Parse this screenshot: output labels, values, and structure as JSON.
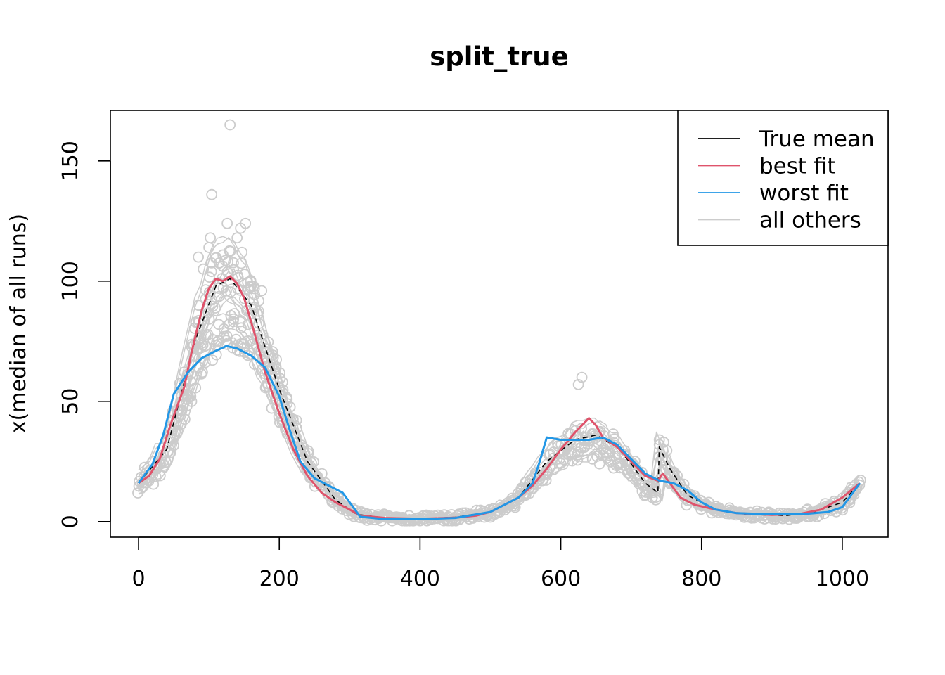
{
  "chart_data": {
    "type": "line",
    "title": "split_true",
    "xlabel": "",
    "ylabel": "x(median of all runs)",
    "xlim": [
      -40,
      1065
    ],
    "ylim": [
      -6.5,
      171
    ],
    "x_ticks": [
      0,
      200,
      400,
      600,
      800,
      1000
    ],
    "y_ticks": [
      0,
      50,
      100,
      150
    ],
    "grid": false,
    "legend_position": "top-right",
    "legend": [
      {
        "label": "True mean",
        "color": "#000000"
      },
      {
        "label": "best fit",
        "color": "#df536b"
      },
      {
        "label": "worst fit",
        "color": "#2297e6"
      },
      {
        "label": "all others",
        "color": "#cccccc"
      }
    ],
    "series": [
      {
        "name": "True mean",
        "color": "#000000",
        "style": "dashed",
        "points": [
          [
            0,
            16
          ],
          [
            40,
            30
          ],
          [
            80,
            75
          ],
          [
            110,
            98
          ],
          [
            130,
            101
          ],
          [
            160,
            90
          ],
          [
            200,
            55
          ],
          [
            240,
            25
          ],
          [
            280,
            9
          ],
          [
            310,
            3
          ],
          [
            350,
            1.5
          ],
          [
            400,
            1.2
          ],
          [
            450,
            1.8
          ],
          [
            500,
            4
          ],
          [
            540,
            10
          ],
          [
            580,
            25
          ],
          [
            620,
            34
          ],
          [
            650,
            36
          ],
          [
            680,
            31
          ],
          [
            700,
            24
          ],
          [
            720,
            16
          ],
          [
            738,
            12
          ],
          [
            740,
            31
          ],
          [
            755,
            22
          ],
          [
            780,
            11
          ],
          [
            820,
            5
          ],
          [
            860,
            3
          ],
          [
            920,
            2.5
          ],
          [
            960,
            4
          ],
          [
            1000,
            8
          ],
          [
            1025,
            16
          ]
        ]
      },
      {
        "name": "best fit",
        "color": "#df536b",
        "style": "solid",
        "points": [
          [
            0,
            16
          ],
          [
            15,
            19
          ],
          [
            30,
            26
          ],
          [
            45,
            40
          ],
          [
            55,
            48
          ],
          [
            65,
            56
          ],
          [
            75,
            70
          ],
          [
            90,
            88
          ],
          [
            100,
            97
          ],
          [
            110,
            101
          ],
          [
            120,
            100
          ],
          [
            130,
            102
          ],
          [
            140,
            99
          ],
          [
            150,
            93
          ],
          [
            165,
            78
          ],
          [
            180,
            62
          ],
          [
            200,
            45
          ],
          [
            220,
            30
          ],
          [
            240,
            19
          ],
          [
            260,
            12
          ],
          [
            280,
            8
          ],
          [
            300,
            5
          ],
          [
            315,
            2.5
          ],
          [
            350,
            1.5
          ],
          [
            400,
            1.2
          ],
          [
            450,
            1.6
          ],
          [
            480,
            2.5
          ],
          [
            500,
            4
          ],
          [
            520,
            7
          ],
          [
            540,
            10
          ],
          [
            560,
            15
          ],
          [
            580,
            22
          ],
          [
            600,
            30
          ],
          [
            620,
            37
          ],
          [
            640,
            43
          ],
          [
            650,
            40
          ],
          [
            660,
            35
          ],
          [
            680,
            31
          ],
          [
            700,
            25
          ],
          [
            720,
            19
          ],
          [
            738,
            17
          ],
          [
            745,
            20
          ],
          [
            755,
            16
          ],
          [
            770,
            10
          ],
          [
            790,
            7
          ],
          [
            820,
            5
          ],
          [
            850,
            3.5
          ],
          [
            900,
            2.8
          ],
          [
            940,
            3.2
          ],
          [
            970,
            5
          ],
          [
            1000,
            10
          ],
          [
            1025,
            16
          ]
        ]
      },
      {
        "name": "worst fit",
        "color": "#2297e6",
        "style": "solid",
        "points": [
          [
            0,
            16
          ],
          [
            20,
            24
          ],
          [
            35,
            36
          ],
          [
            50,
            53
          ],
          [
            70,
            62
          ],
          [
            90,
            68
          ],
          [
            110,
            71
          ],
          [
            125,
            73
          ],
          [
            140,
            72
          ],
          [
            160,
            69
          ],
          [
            180,
            64
          ],
          [
            200,
            52
          ],
          [
            215,
            38
          ],
          [
            230,
            25
          ],
          [
            250,
            18
          ],
          [
            270,
            15
          ],
          [
            290,
            12
          ],
          [
            305,
            6
          ],
          [
            315,
            2
          ],
          [
            350,
            1
          ],
          [
            400,
            1
          ],
          [
            450,
            1.5
          ],
          [
            500,
            4
          ],
          [
            540,
            10
          ],
          [
            560,
            16
          ],
          [
            570,
            25
          ],
          [
            580,
            35
          ],
          [
            600,
            34
          ],
          [
            620,
            34
          ],
          [
            640,
            34
          ],
          [
            660,
            35
          ],
          [
            680,
            32
          ],
          [
            700,
            26
          ],
          [
            720,
            20
          ],
          [
            740,
            17
          ],
          [
            760,
            16
          ],
          [
            780,
            13
          ],
          [
            800,
            8
          ],
          [
            820,
            5
          ],
          [
            850,
            3.5
          ],
          [
            900,
            3
          ],
          [
            940,
            3
          ],
          [
            980,
            4
          ],
          [
            1000,
            6
          ],
          [
            1025,
            16
          ]
        ]
      }
    ],
    "scatter_others": {
      "name": "all others",
      "color": "#cccccc",
      "outliers": [
        [
          130,
          165
        ],
        [
          104,
          136
        ],
        [
          126,
          124
        ],
        [
          145,
          122
        ],
        [
          152,
          124
        ],
        [
          140,
          118
        ],
        [
          102,
          118
        ],
        [
          100,
          114
        ],
        [
          147,
          112
        ],
        [
          85,
          110
        ],
        [
          127,
          108
        ],
        [
          92,
          105
        ],
        [
          160,
          98
        ],
        [
          175,
          96
        ],
        [
          630,
          60
        ],
        [
          625,
          57
        ],
        [
          740,
          34
        ],
        [
          745,
          30
        ],
        [
          655,
          24
        ],
        [
          730,
          10
        ]
      ]
    }
  }
}
